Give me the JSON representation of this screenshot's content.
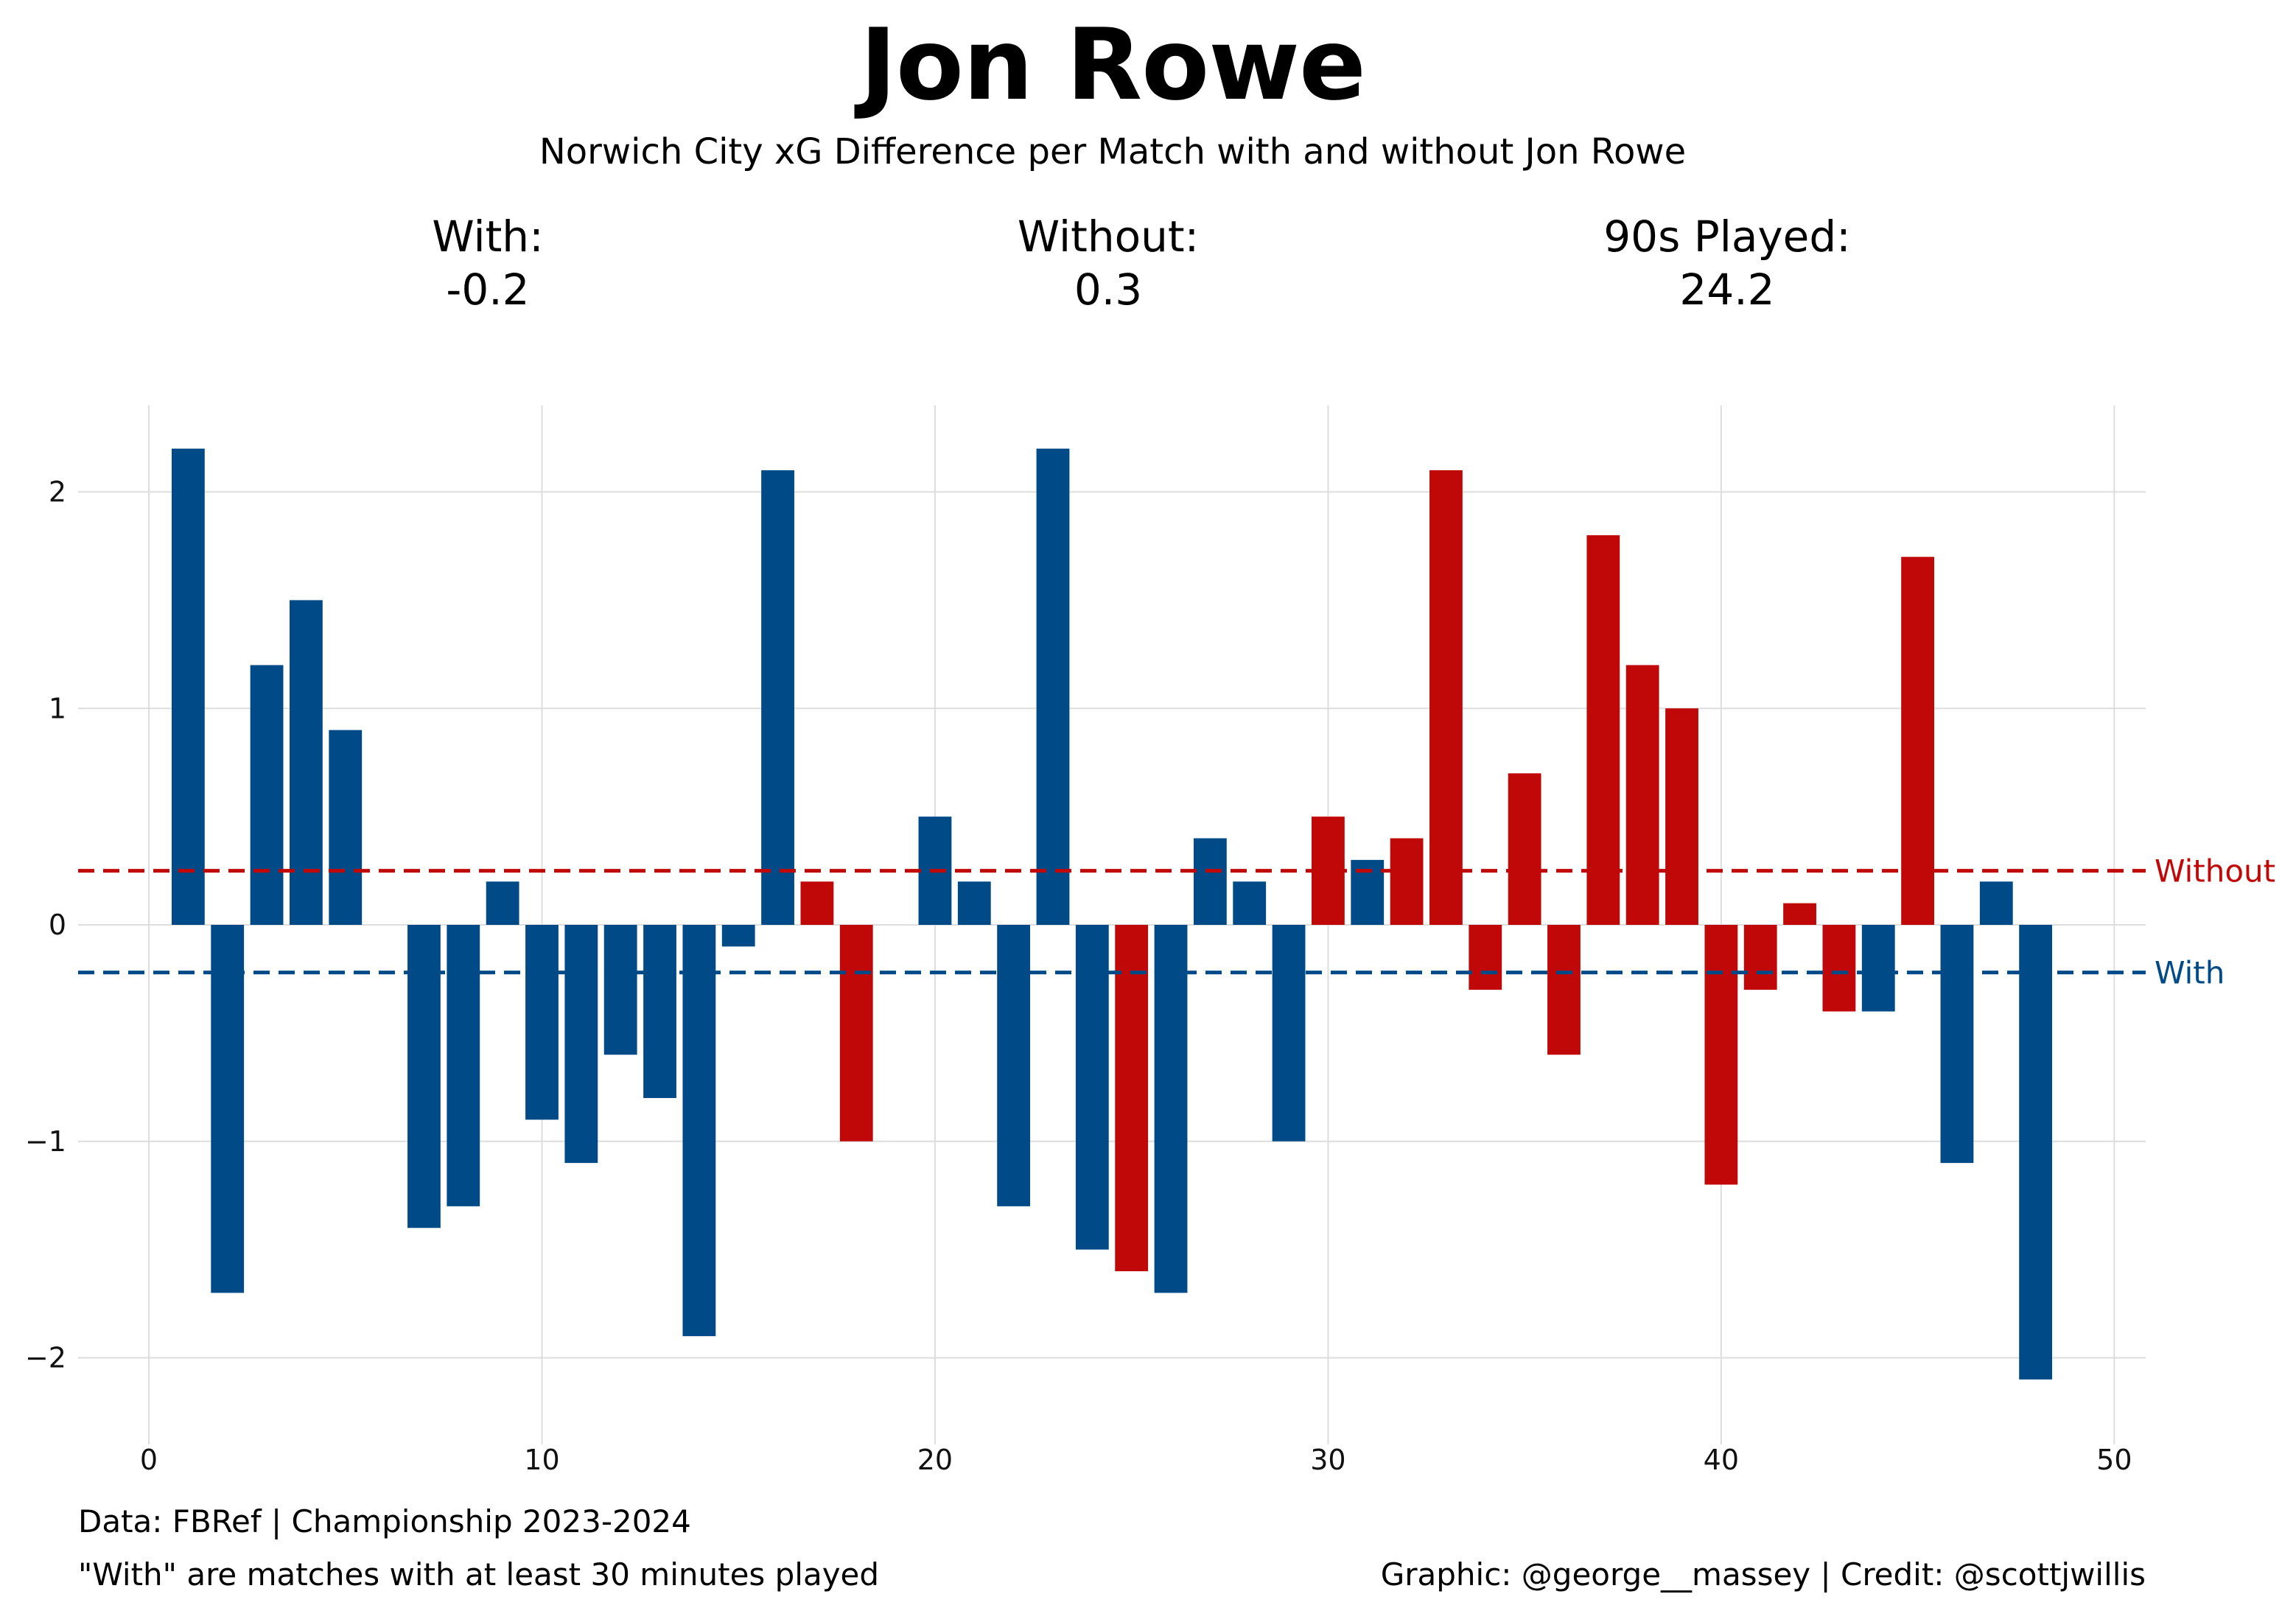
{
  "title": "Jon Rowe",
  "subtitle": "Norwich City xG Difference per Match with and without Jon Rowe",
  "stats": {
    "with_label": "With:",
    "with_value": "-0.2",
    "without_label": "Without:",
    "without_value": "0.3",
    "played_label": "90s Played:",
    "played_value": "24.2"
  },
  "footer": {
    "data_source": "Data: FBRef | Championship 2023-2024",
    "note": "\"With\" are matches with at least 30 minutes played",
    "credit": "Graphic: @george__massey | Credit: @scottjwillis"
  },
  "colors": {
    "with": "#004b87",
    "without": "#c00808",
    "grid": "#dddddd"
  },
  "chart_data": {
    "type": "bar",
    "xlim": [
      -1.8,
      50.8
    ],
    "ylim": [
      -2.4,
      2.4
    ],
    "xticks": [
      0,
      10,
      20,
      30,
      40,
      50
    ],
    "yticks": [
      -2,
      -1,
      0,
      1,
      2
    ],
    "reference_lines": [
      {
        "label": "Without",
        "value": 0.25,
        "series": "without"
      },
      {
        "label": "With",
        "value": -0.22,
        "series": "with"
      }
    ],
    "bars": [
      {
        "x": 1,
        "y": 2.2,
        "series": "with"
      },
      {
        "x": 2,
        "y": -1.7,
        "series": "with"
      },
      {
        "x": 3,
        "y": 1.2,
        "series": "with"
      },
      {
        "x": 4,
        "y": 1.5,
        "series": "with"
      },
      {
        "x": 5,
        "y": 0.9,
        "series": "with"
      },
      {
        "x": 7,
        "y": -1.4,
        "series": "with"
      },
      {
        "x": 8,
        "y": -1.3,
        "series": "with"
      },
      {
        "x": 9,
        "y": 0.2,
        "series": "with"
      },
      {
        "x": 10,
        "y": -0.9,
        "series": "with"
      },
      {
        "x": 11,
        "y": -1.1,
        "series": "with"
      },
      {
        "x": 12,
        "y": -0.6,
        "series": "with"
      },
      {
        "x": 13,
        "y": -0.8,
        "series": "with"
      },
      {
        "x": 14,
        "y": -1.9,
        "series": "with"
      },
      {
        "x": 15,
        "y": -0.1,
        "series": "with"
      },
      {
        "x": 16,
        "y": 2.1,
        "series": "with"
      },
      {
        "x": 17,
        "y": 0.2,
        "series": "without"
      },
      {
        "x": 18,
        "y": -1.0,
        "series": "without"
      },
      {
        "x": 20,
        "y": 0.5,
        "series": "with"
      },
      {
        "x": 21,
        "y": 0.2,
        "series": "with"
      },
      {
        "x": 22,
        "y": -1.3,
        "series": "with"
      },
      {
        "x": 23,
        "y": 2.2,
        "series": "with"
      },
      {
        "x": 24,
        "y": -1.5,
        "series": "with"
      },
      {
        "x": 25,
        "y": -1.6,
        "series": "without"
      },
      {
        "x": 26,
        "y": -1.7,
        "series": "with"
      },
      {
        "x": 27,
        "y": 0.4,
        "series": "with"
      },
      {
        "x": 28,
        "y": 0.2,
        "series": "with"
      },
      {
        "x": 29,
        "y": -1.0,
        "series": "with"
      },
      {
        "x": 30,
        "y": 0.5,
        "series": "without"
      },
      {
        "x": 31,
        "y": 0.3,
        "series": "with"
      },
      {
        "x": 32,
        "y": 0.4,
        "series": "without"
      },
      {
        "x": 33,
        "y": 2.1,
        "series": "without"
      },
      {
        "x": 34,
        "y": -0.3,
        "series": "without"
      },
      {
        "x": 35,
        "y": 0.7,
        "series": "without"
      },
      {
        "x": 36,
        "y": -0.6,
        "series": "without"
      },
      {
        "x": 37,
        "y": 1.8,
        "series": "without"
      },
      {
        "x": 38,
        "y": 1.2,
        "series": "without"
      },
      {
        "x": 39,
        "y": 1.0,
        "series": "without"
      },
      {
        "x": 40,
        "y": -1.2,
        "series": "without"
      },
      {
        "x": 41,
        "y": -0.3,
        "series": "without"
      },
      {
        "x": 42,
        "y": 0.1,
        "series": "without"
      },
      {
        "x": 43,
        "y": -0.4,
        "series": "without"
      },
      {
        "x": 44,
        "y": -0.4,
        "series": "with"
      },
      {
        "x": 45,
        "y": 1.7,
        "series": "without"
      },
      {
        "x": 46,
        "y": -1.1,
        "series": "with"
      },
      {
        "x": 47,
        "y": 0.2,
        "series": "with"
      },
      {
        "x": 48,
        "y": -2.1,
        "series": "with"
      }
    ]
  }
}
